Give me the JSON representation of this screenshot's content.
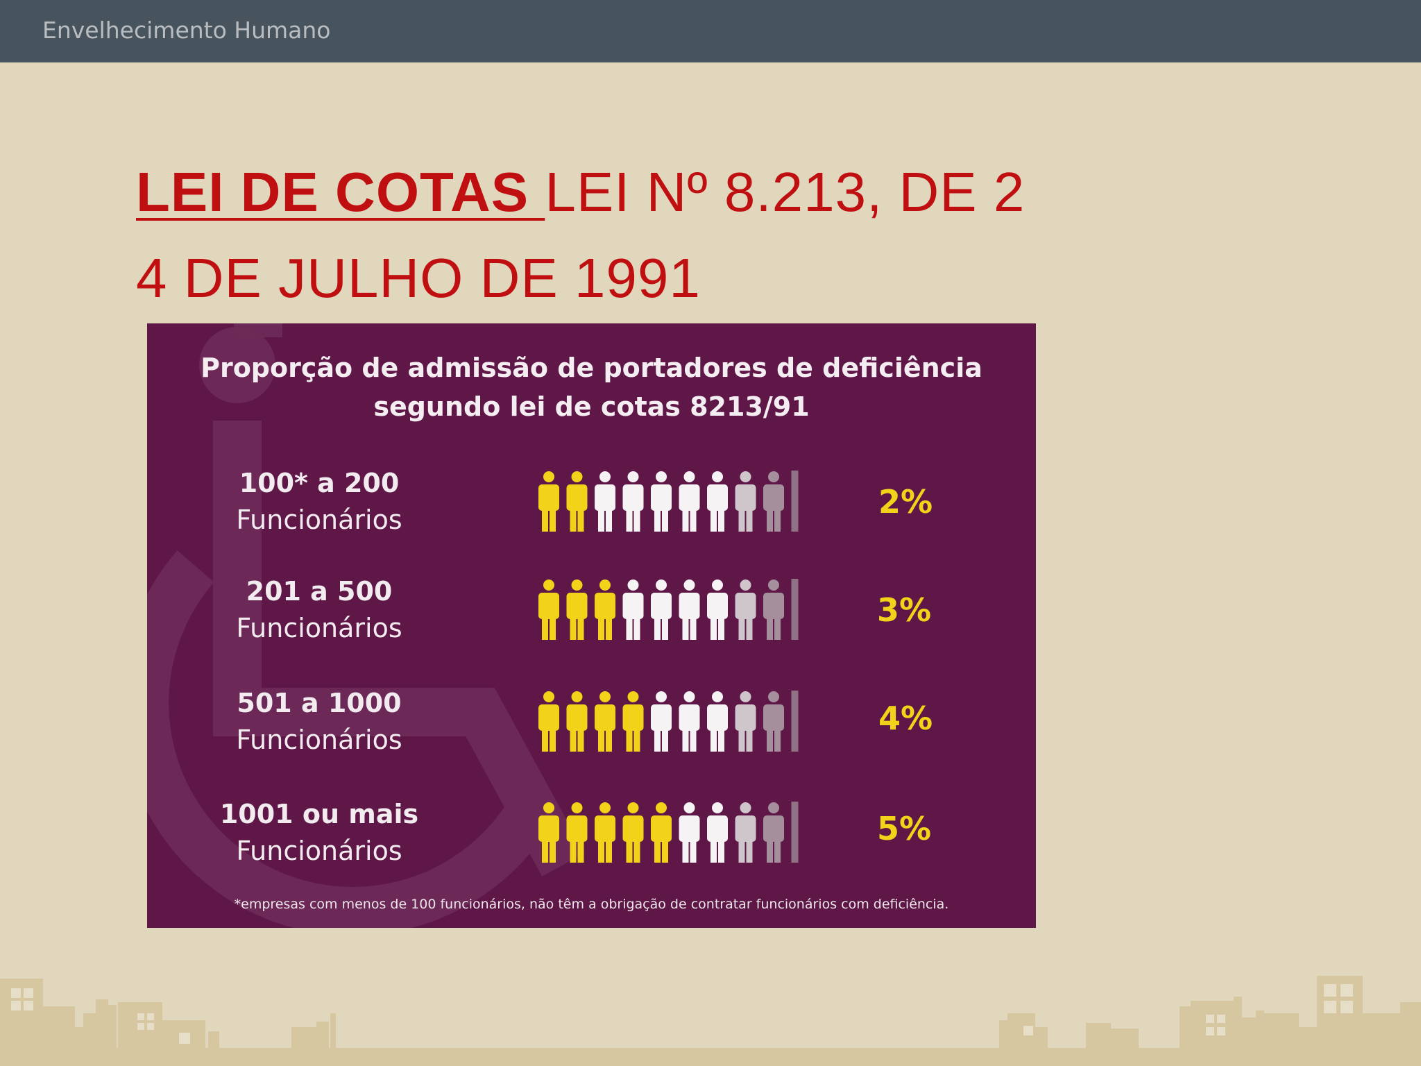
{
  "header": {
    "title": "Envelhecimento Humano"
  },
  "slide": {
    "title_strong": "LEI DE COTAS ",
    "title_rest_1": "LEI Nº ",
    "title_number": "8.213",
    "title_rest_2": ", DE 2",
    "title_line_2": "4 DE JULHO DE 1991"
  },
  "infographic": {
    "title_line_1": "Proporção de admissão de portadores de deficiência",
    "title_line_2": "segundo lei de cotas 8213/91",
    "rows": [
      {
        "range": "100* a 200",
        "unit": "Funcionários",
        "percent_label": "2%",
        "highlighted_figures": 2
      },
      {
        "range": "201 a 500",
        "unit": "Funcionários",
        "percent_label": "3%",
        "highlighted_figures": 3
      },
      {
        "range": "501 a 1000",
        "unit": "Funcionários",
        "percent_label": "4%",
        "highlighted_figures": 4
      },
      {
        "range": "1001 ou mais",
        "unit": "Funcionários",
        "percent_label": "5%",
        "highlighted_figures": 5
      }
    ],
    "footnote": "*empresas com menos de 100 funcionários, não têm a obrigação de contratar funcionários com deficiência.",
    "colors": {
      "background": "#5f1747",
      "highlight": "#f3d21a",
      "figure": "#f6f3f5",
      "accent": "#c00f10"
    }
  }
}
